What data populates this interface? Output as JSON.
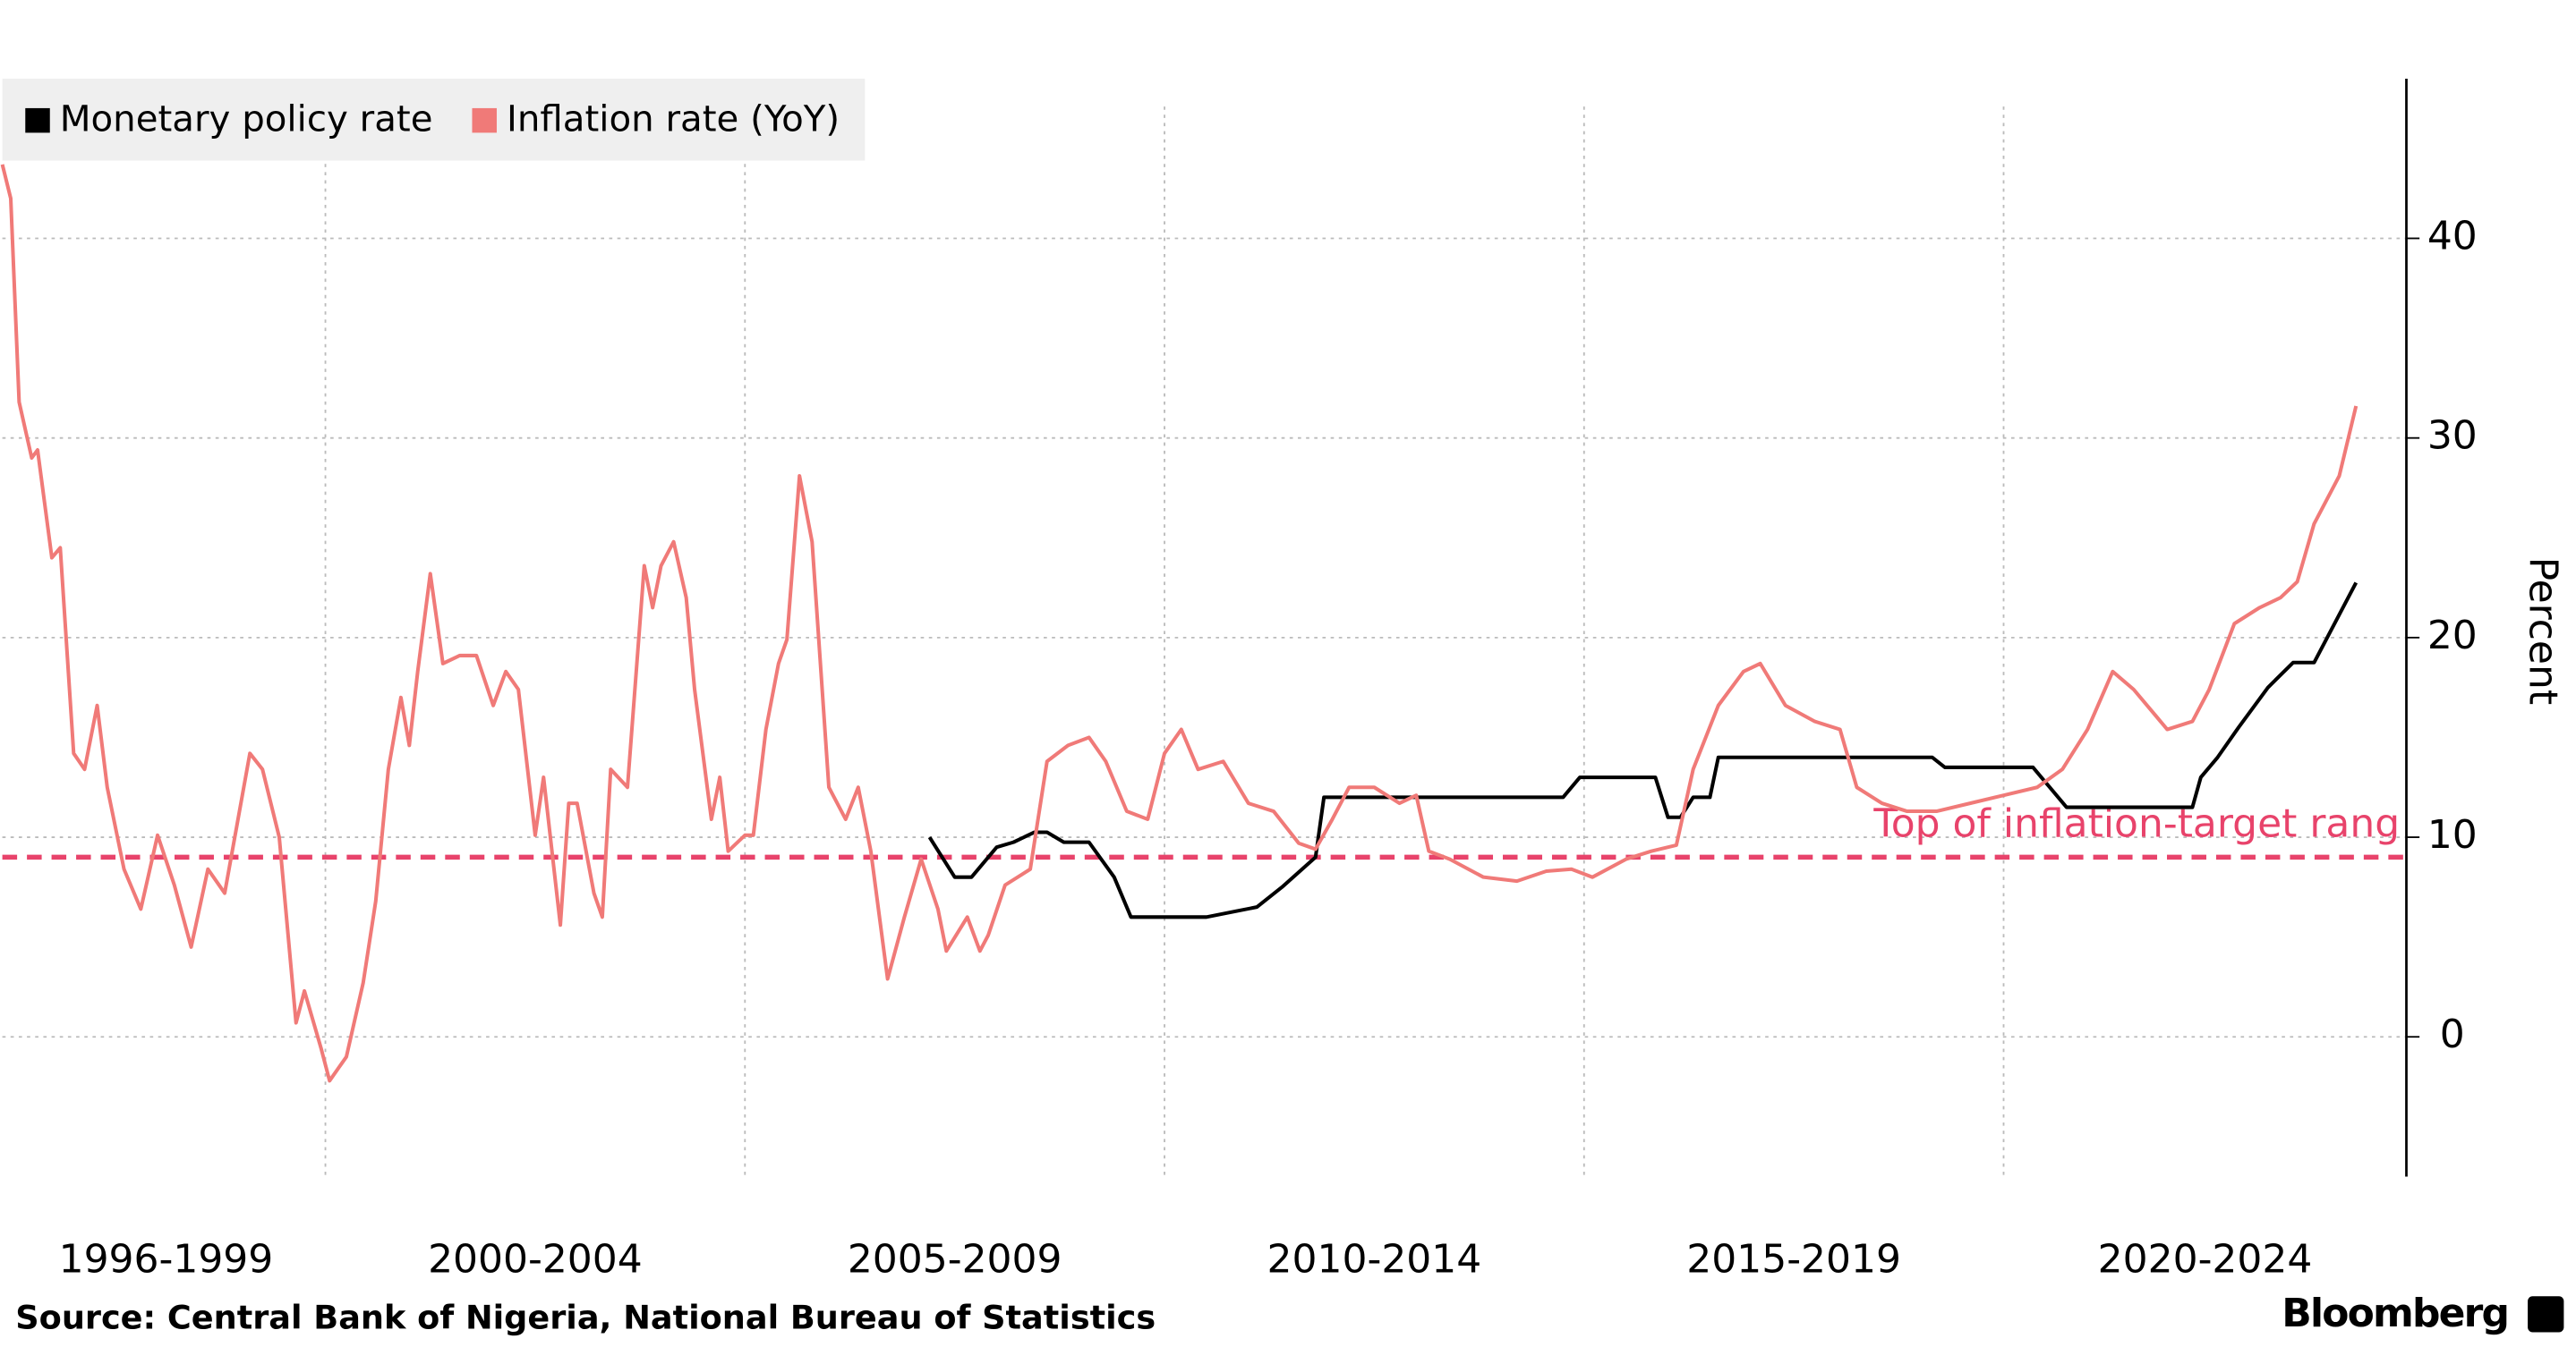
{
  "chart_data": {
    "type": "line",
    "ylabel": "Percent",
    "source": "Source: Central Bank of Nigeria, National Bureau of Statistics",
    "brand": "Bloomberg",
    "xlim": [
      1996.15,
      2024.8
    ],
    "xticks": [
      {
        "value": 1998.1,
        "label": "1996-1999"
      },
      {
        "value": 2002.5,
        "label": "2000-2004"
      },
      {
        "value": 2007.5,
        "label": "2005-2009"
      },
      {
        "value": 2012.5,
        "label": "2010-2014"
      },
      {
        "value": 2017.5,
        "label": "2015-2019"
      },
      {
        "value": 2022.4,
        "label": "2020-2024"
      }
    ],
    "xgrid": [
      2000,
      2005,
      2010,
      2015,
      2020
    ],
    "ylim": [
      -7,
      48
    ],
    "yticks": [
      0,
      10,
      20,
      30,
      40
    ],
    "grid": true,
    "legend": "top-left",
    "reference_line": {
      "label": "Top of inflation-target rang",
      "value": 9,
      "color": "#e8436b"
    },
    "series": [
      {
        "name": "Monetary policy rate",
        "color": "#000000",
        "x": [
          2007.2,
          2007.5,
          2007.7,
          2008.0,
          2008.2,
          2008.45,
          2008.6,
          2008.8,
          2009.1,
          2009.4,
          2009.6,
          2010.5,
          2011.1,
          2011.4,
          2011.8,
          2011.9,
          2014.75,
          2014.95,
          2015.85,
          2016.0,
          2016.15,
          2016.3,
          2016.5,
          2016.6,
          2019.15,
          2019.3,
          2020.35,
          2020.75,
          2022.25,
          2022.35,
          2022.55,
          2022.8,
          2023.15,
          2023.45,
          2023.7,
          2024.2
        ],
        "values": [
          10,
          8,
          8,
          9.5,
          9.75,
          10.25,
          10.25,
          9.75,
          9.75,
          8,
          6,
          6,
          6.5,
          7.5,
          9,
          12,
          12,
          13,
          13,
          11,
          11,
          12,
          12,
          14,
          14,
          13.5,
          13.5,
          11.5,
          11.5,
          13,
          14,
          15.5,
          17.5,
          18.75,
          18.75,
          22.75
        ]
      },
      {
        "name": "Inflation rate (YoY)",
        "color": "#f07a78",
        "x": [
          1996.15,
          1996.25,
          1996.35,
          1996.5,
          1996.57,
          1996.74,
          1996.84,
          1997.0,
          1997.13,
          1997.28,
          1997.4,
          1997.6,
          1997.8,
          1998.0,
          1998.2,
          1998.4,
          1998.6,
          1998.8,
          1999.1,
          1999.25,
          1999.45,
          1999.65,
          1999.75,
          1999.95,
          2000.05,
          2000.25,
          2000.45,
          2000.6,
          2000.75,
          2000.9,
          2001.0,
          2001.1,
          2001.25,
          2001.4,
          2001.6,
          2001.8,
          2002.0,
          2002.15,
          2002.3,
          2002.5,
          2002.6,
          2002.8,
          2002.9,
          2003.0,
          2003.2,
          2003.3,
          2003.4,
          2003.6,
          2003.8,
          2003.9,
          2004.0,
          2004.15,
          2004.3,
          2004.4,
          2004.6,
          2004.7,
          2004.8,
          2005.0,
          2005.1,
          2005.25,
          2005.4,
          2005.5,
          2005.65,
          2005.8,
          2006.0,
          2006.2,
          2006.35,
          2006.5,
          2006.7,
          2006.9,
          2007.1,
          2007.3,
          2007.4,
          2007.65,
          2007.8,
          2007.9,
          2008.1,
          2008.4,
          2008.6,
          2008.85,
          2009.1,
          2009.3,
          2009.55,
          2009.8,
          2010.0,
          2010.2,
          2010.4,
          2010.7,
          2011.0,
          2011.3,
          2011.6,
          2011.8,
          2012.0,
          2012.2,
          2012.5,
          2012.8,
          2013.0,
          2013.15,
          2013.4,
          2013.8,
          2014.2,
          2014.55,
          2014.85,
          2015.1,
          2015.5,
          2015.8,
          2016.1,
          2016.3,
          2016.6,
          2016.9,
          2017.1,
          2017.4,
          2017.75,
          2018.05,
          2018.25,
          2018.55,
          2018.85,
          2019.2,
          2019.6,
          2020.0,
          2020.4,
          2020.7,
          2021.0,
          2021.3,
          2021.55,
          2021.95,
          2022.25,
          2022.45,
          2022.75,
          2023.05,
          2023.3,
          2023.5,
          2023.7,
          2024.0,
          2024.2
        ],
        "values": [
          43.7,
          42,
          31.8,
          29,
          29.4,
          24,
          24.5,
          14.2,
          13.4,
          16.6,
          12.5,
          8.4,
          6.4,
          10.1,
          7.6,
          4.5,
          8.4,
          7.2,
          14.2,
          13.4,
          10,
          0.7,
          2.3,
          -0.6,
          -2.2,
          -1,
          2.7,
          6.8,
          13.4,
          17,
          14.6,
          18.3,
          23.2,
          18.7,
          19.1,
          19.1,
          16.6,
          18.3,
          17.4,
          10.1,
          13,
          5.6,
          11.7,
          11.7,
          7.2,
          6,
          13.4,
          12.5,
          23.6,
          21.5,
          23.6,
          24.8,
          22,
          17.4,
          10.9,
          13,
          9.3,
          10.1,
          10.1,
          15.4,
          18.7,
          19.9,
          28.1,
          24.8,
          12.5,
          10.9,
          12.5,
          9.3,
          2.9,
          6,
          8.9,
          6.4,
          4.3,
          6,
          4.3,
          5.1,
          7.6,
          8.4,
          13.8,
          14.6,
          15,
          13.8,
          11.3,
          10.9,
          14.2,
          15.4,
          13.4,
          13.8,
          11.7,
          11.3,
          9.7,
          9.4,
          10.9,
          12.5,
          12.5,
          11.7,
          12.1,
          9.3,
          8.9,
          8,
          7.8,
          8.3,
          8.4,
          8,
          8.9,
          9.3,
          9.6,
          13.4,
          16.6,
          18.3,
          18.7,
          16.6,
          15.8,
          15.4,
          12.5,
          11.7,
          11.3,
          11.3,
          11.7,
          12.1,
          12.5,
          13.4,
          15.4,
          18.3,
          17.4,
          15.4,
          15.8,
          17.4,
          20.7,
          21.5,
          22,
          22.8,
          25.7,
          28.1,
          31.6
        ]
      }
    ]
  }
}
